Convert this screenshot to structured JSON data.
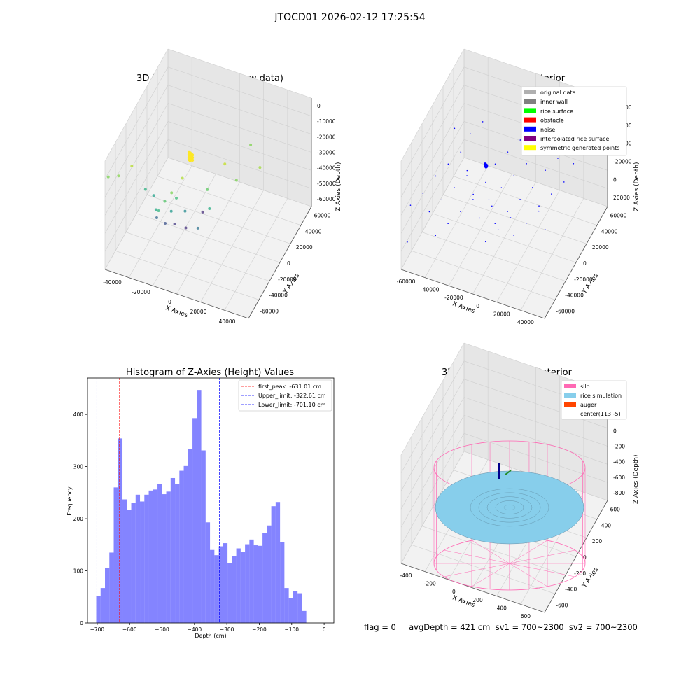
{
  "figure": {
    "suptitle": "JTOCD01 2026-02-12 17:25:54",
    "bottom_info": "flag = 0     avgDepth = 421 cm  sv1 = 700~2300  sv2 = 700~2300"
  },
  "colors": {
    "histogram_bar": "#5050ff",
    "first_peak_line": "#ff0000",
    "limit_lines": "#0000ff",
    "silo_wireframe": "#ff69b4",
    "rice_simulation": "#87ceeb",
    "auger": "#ff4500",
    "noise": "#0000ff"
  },
  "chart_data": [
    {
      "type": "scatter",
      "title": "3D Plot of Silo Interior(row data)",
      "xlabel": "X Axies",
      "ylabel": "Y Axies",
      "zlabel": "Z Axies (Depth)",
      "x_ticks": [
        "-40000",
        "-20000",
        "0",
        "20000",
        "40000"
      ],
      "y_ticks": [
        "-60000",
        "-40000",
        "-20000",
        "0",
        "20000",
        "40000",
        "60000"
      ],
      "z_ticks": [
        "0",
        "-10000",
        "-20000",
        "-30000",
        "-40000",
        "-50000",
        "-60000"
      ],
      "colormap": "viridis (by depth)",
      "grid": true
    },
    {
      "type": "scatter",
      "title": "3D classify of Silo Interior",
      "xlabel": "X Axies",
      "ylabel": "Y Axies",
      "zlabel": "Z Axies (Depth)",
      "x_ticks": [
        "-60000",
        "-40000",
        "-20000",
        "0",
        "20000",
        "40000"
      ],
      "y_ticks": [
        "-60000",
        "-40000",
        "-20000",
        "0",
        "20000",
        "40000",
        "60000"
      ],
      "z_ticks": [
        "-80000",
        "-60000",
        "-40000",
        "-20000",
        "0",
        "20000"
      ],
      "legend": [
        {
          "label": "original data",
          "color": "#b0b0b0"
        },
        {
          "label": "inner wall",
          "color": "#808080"
        },
        {
          "label": "rice surface",
          "color": "#00ff00"
        },
        {
          "label": "obstacle",
          "color": "#ff0000"
        },
        {
          "label": "noise",
          "color": "#0000ff"
        },
        {
          "label": "interpolated rice surface",
          "color": "#800080"
        },
        {
          "label": "symmetric generated points",
          "color": "#ffff00"
        }
      ],
      "legend_position": "top-right",
      "grid": true
    },
    {
      "type": "bar",
      "title": "Histogram of Z-Axies (Height) Values",
      "xlabel": "Depth (cm)",
      "ylabel": "Frequency",
      "xlim": [
        -730,
        30
      ],
      "ylim": [
        0,
        470
      ],
      "x_ticks": [
        -700,
        -600,
        -500,
        -400,
        -300,
        -200,
        -100,
        0
      ],
      "y_ticks": [
        0,
        100,
        200,
        300,
        400
      ],
      "bin_start": -703,
      "bin_width": 13.5,
      "values": [
        52,
        67,
        106,
        135,
        260,
        354,
        237,
        217,
        230,
        246,
        233,
        246,
        254,
        256,
        266,
        247,
        252,
        278,
        267,
        292,
        301,
        334,
        393,
        447,
        331,
        193,
        140,
        130,
        147,
        153,
        115,
        128,
        143,
        136,
        151,
        160,
        149,
        148,
        172,
        187,
        224,
        232,
        155,
        67,
        47,
        61,
        57,
        23
      ],
      "vlines": [
        {
          "label": "first_peak: -631.01 cm",
          "x": -631.01,
          "color": "#ff0000"
        },
        {
          "label": "Upper_limit: -322.61 cm",
          "x": -322.61,
          "color": "#0000ff"
        },
        {
          "label": "Lower_limit: -701.10 cm",
          "x": -701.1,
          "color": "#0000ff"
        }
      ],
      "legend_position": "top-right"
    },
    {
      "type": "surface",
      "title": "3D simulation of Silo Interior",
      "xlabel": "X Axies",
      "ylabel": "Y Axies",
      "zlabel": "Z Axies (Depth)",
      "x_ticks": [
        "-400",
        "-200",
        "0",
        "200",
        "400",
        "600"
      ],
      "y_ticks": [
        "-600",
        "-400",
        "-200",
        "0",
        "200",
        "400",
        "600"
      ],
      "z_ticks": [
        "400",
        "200",
        "0",
        "-200",
        "-400",
        "-600",
        "-800"
      ],
      "legend": [
        {
          "label": "silo",
          "color": "#ff69b4"
        },
        {
          "label": "rice simulation",
          "color": "#87ceeb"
        },
        {
          "label": "auger",
          "color": "#ff4500"
        },
        {
          "label": "center(113,-5)",
          "color": ""
        }
      ],
      "legend_position": "top-right",
      "grid": true
    }
  ]
}
